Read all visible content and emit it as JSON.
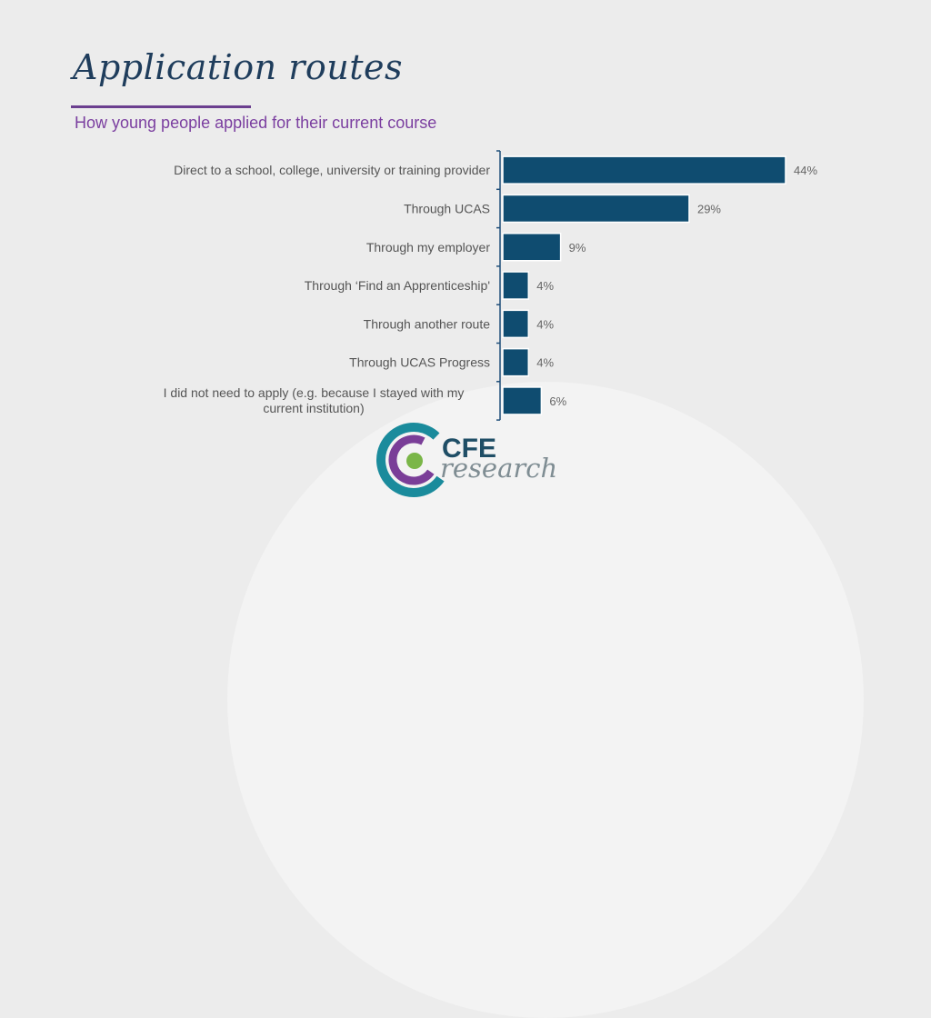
{
  "header": {
    "title": "Application routes",
    "subtitle": "How young people applied for their current course"
  },
  "chart_data": {
    "type": "bar",
    "orientation": "horizontal",
    "categories": [
      "Direct to a school, college, university or training provider",
      "Through UCAS",
      "Through my employer",
      "Through ‘Find an Apprenticeship'",
      "Through another route",
      "Through UCAS Progress",
      "I did not need to apply (e.g.  because I stayed with my current institution)"
    ],
    "values": [
      44,
      29,
      9,
      4,
      4,
      4,
      6
    ],
    "value_labels": [
      "44%",
      "29%",
      "9%",
      "4%",
      "4%",
      "4%",
      "6%"
    ],
    "xlabel": "",
    "ylabel": "",
    "xlim": [
      0,
      44
    ],
    "grid": false,
    "bar_color": "#0f4c70"
  },
  "logo": {
    "word1": "CFE",
    "word2": "research"
  },
  "colors": {
    "title": "#1f3d5c",
    "accent": "#7b3fa0",
    "bar": "#0f4c70",
    "logo_teal": "#1a8b9c",
    "logo_purple": "#7a3e98",
    "logo_green": "#7ab648"
  }
}
